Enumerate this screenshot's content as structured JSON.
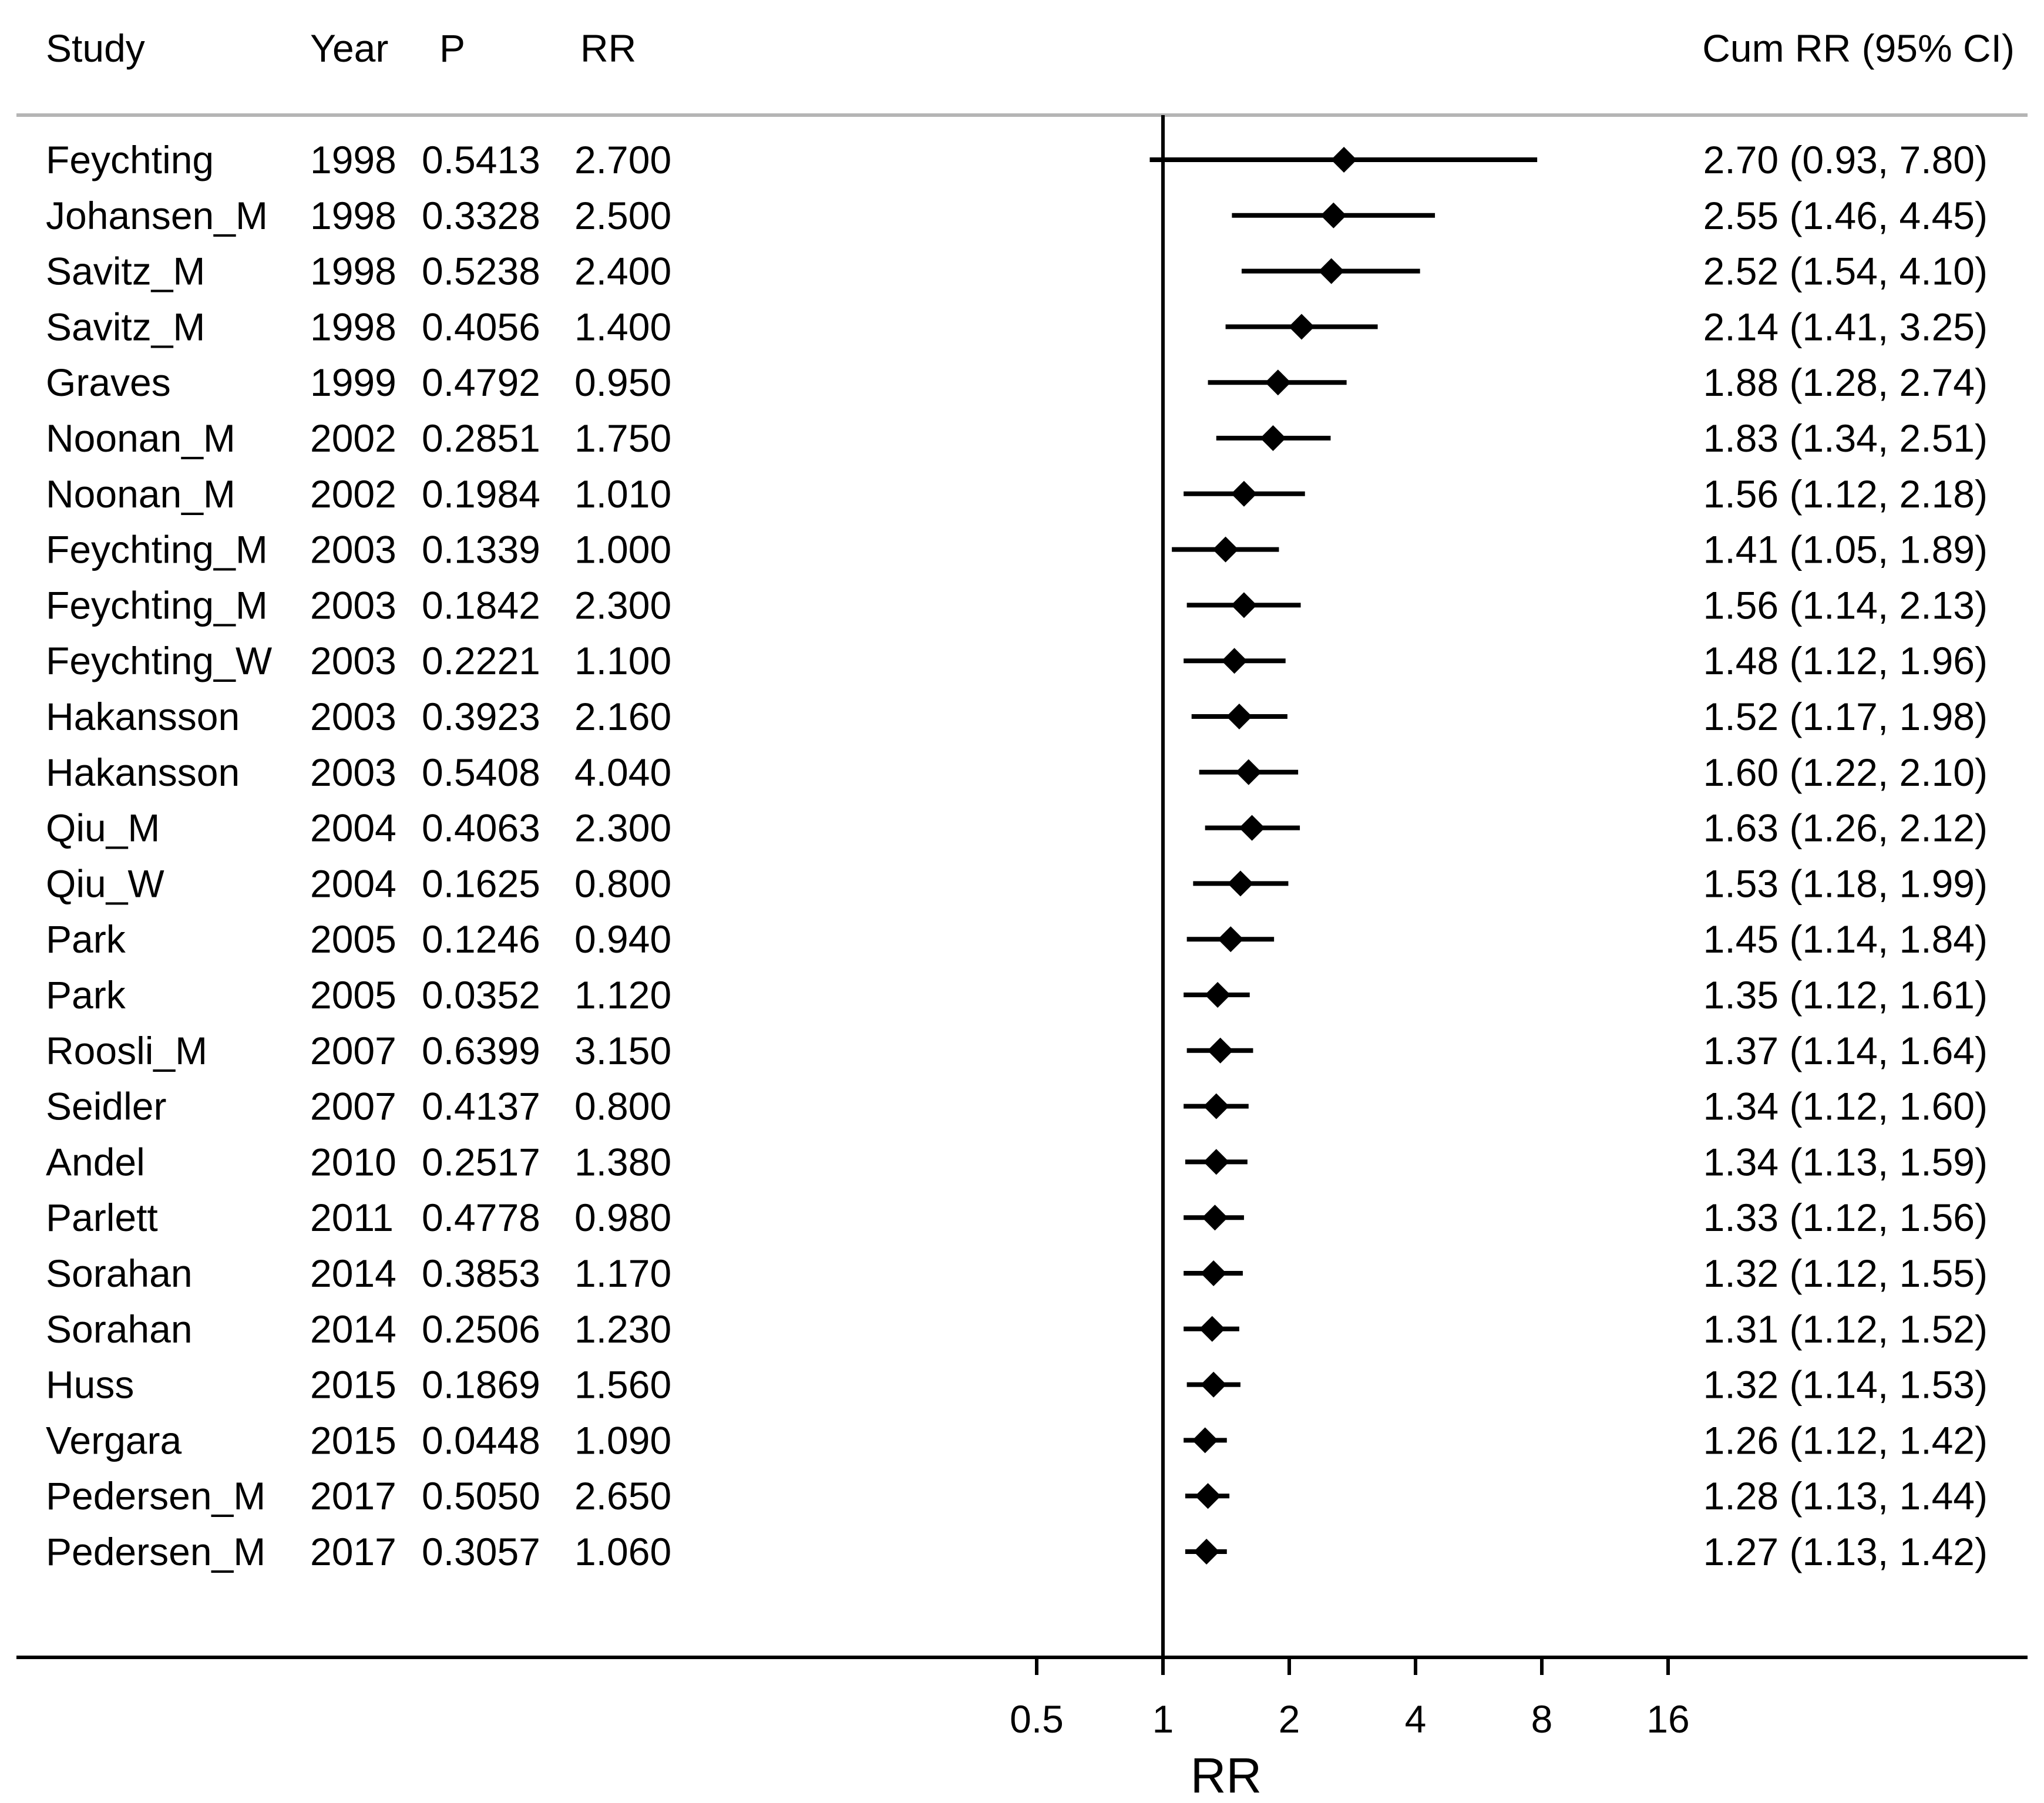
{
  "chart_data": {
    "type": "forest",
    "title": "",
    "xlabel": "RR",
    "xscale": "log2",
    "xlim": [
      0.5,
      16
    ],
    "reference_line": 1,
    "headers": {
      "study": "Study",
      "year": "Year",
      "p": "P",
      "rr": "RR",
      "cum": "Cum RR (95% CI)"
    },
    "ticks": [
      {
        "value": 0.5,
        "label": "0.5"
      },
      {
        "value": 1,
        "label": "1"
      },
      {
        "value": 2,
        "label": "2"
      },
      {
        "value": 4,
        "label": "4"
      },
      {
        "value": 8,
        "label": "8"
      },
      {
        "value": 16,
        "label": "16"
      }
    ],
    "rows": [
      {
        "study": "Feychting",
        "year": "1998",
        "p": "0.5413",
        "rr": "2.700",
        "cum": 2.7,
        "lo": 0.93,
        "hi": 7.8,
        "label": "2.70 (0.93, 7.80)"
      },
      {
        "study": "Johansen_M",
        "year": "1998",
        "p": "0.3328",
        "rr": "2.500",
        "cum": 2.55,
        "lo": 1.46,
        "hi": 4.45,
        "label": "2.55 (1.46, 4.45)"
      },
      {
        "study": "Savitz_M",
        "year": "1998",
        "p": "0.5238",
        "rr": "2.400",
        "cum": 2.52,
        "lo": 1.54,
        "hi": 4.1,
        "label": "2.52 (1.54, 4.10)"
      },
      {
        "study": "Savitz_M",
        "year": "1998",
        "p": "0.4056",
        "rr": "1.400",
        "cum": 2.14,
        "lo": 1.41,
        "hi": 3.25,
        "label": "2.14 (1.41, 3.25)"
      },
      {
        "study": "Graves",
        "year": "1999",
        "p": "0.4792",
        "rr": "0.950",
        "cum": 1.88,
        "lo": 1.28,
        "hi": 2.74,
        "label": "1.88 (1.28, 2.74)"
      },
      {
        "study": "Noonan_M",
        "year": "2002",
        "p": "0.2851",
        "rr": "1.750",
        "cum": 1.83,
        "lo": 1.34,
        "hi": 2.51,
        "label": "1.83 (1.34, 2.51)"
      },
      {
        "study": "Noonan_M",
        "year": "2002",
        "p": "0.1984",
        "rr": "1.010",
        "cum": 1.56,
        "lo": 1.12,
        "hi": 2.18,
        "label": "1.56 (1.12, 2.18)"
      },
      {
        "study": "Feychting_M",
        "year": "2003",
        "p": "0.1339",
        "rr": "1.000",
        "cum": 1.41,
        "lo": 1.05,
        "hi": 1.89,
        "label": "1.41 (1.05, 1.89)"
      },
      {
        "study": "Feychting_M",
        "year": "2003",
        "p": "0.1842",
        "rr": "2.300",
        "cum": 1.56,
        "lo": 1.14,
        "hi": 2.13,
        "label": "1.56 (1.14, 2.13)"
      },
      {
        "study": "Feychting_W",
        "year": "2003",
        "p": "0.2221",
        "rr": "1.100",
        "cum": 1.48,
        "lo": 1.12,
        "hi": 1.96,
        "label": "1.48 (1.12, 1.96)"
      },
      {
        "study": "Hakansson",
        "year": "2003",
        "p": "0.3923",
        "rr": "2.160",
        "cum": 1.52,
        "lo": 1.17,
        "hi": 1.98,
        "label": "1.52 (1.17, 1.98)"
      },
      {
        "study": "Hakansson",
        "year": "2003",
        "p": "0.5408",
        "rr": "4.040",
        "cum": 1.6,
        "lo": 1.22,
        "hi": 2.1,
        "label": "1.60 (1.22, 2.10)"
      },
      {
        "study": "Qiu_M",
        "year": "2004",
        "p": "0.4063",
        "rr": "2.300",
        "cum": 1.63,
        "lo": 1.26,
        "hi": 2.12,
        "label": "1.63 (1.26, 2.12)"
      },
      {
        "study": "Qiu_W",
        "year": "2004",
        "p": "0.1625",
        "rr": "0.800",
        "cum": 1.53,
        "lo": 1.18,
        "hi": 1.99,
        "label": "1.53 (1.18, 1.99)"
      },
      {
        "study": "Park",
        "year": "2005",
        "p": "0.1246",
        "rr": "0.940",
        "cum": 1.45,
        "lo": 1.14,
        "hi": 1.84,
        "label": "1.45 (1.14, 1.84)"
      },
      {
        "study": "Park",
        "year": "2005",
        "p": "0.0352",
        "rr": "1.120",
        "cum": 1.35,
        "lo": 1.12,
        "hi": 1.61,
        "label": "1.35 (1.12, 1.61)"
      },
      {
        "study": "Roosli_M",
        "year": "2007",
        "p": "0.6399",
        "rr": "3.150",
        "cum": 1.37,
        "lo": 1.14,
        "hi": 1.64,
        "label": "1.37 (1.14, 1.64)"
      },
      {
        "study": "Seidler",
        "year": "2007",
        "p": "0.4137",
        "rr": "0.800",
        "cum": 1.34,
        "lo": 1.12,
        "hi": 1.6,
        "label": "1.34 (1.12, 1.60)"
      },
      {
        "study": "Andel",
        "year": "2010",
        "p": "0.2517",
        "rr": "1.380",
        "cum": 1.34,
        "lo": 1.13,
        "hi": 1.59,
        "label": "1.34 (1.13, 1.59)"
      },
      {
        "study": "Parlett",
        "year": "2011",
        "p": "0.4778",
        "rr": "0.980",
        "cum": 1.33,
        "lo": 1.12,
        "hi": 1.56,
        "label": "1.33 (1.12, 1.56)"
      },
      {
        "study": "Sorahan",
        "year": "2014",
        "p": "0.3853",
        "rr": "1.170",
        "cum": 1.32,
        "lo": 1.12,
        "hi": 1.55,
        "label": "1.32 (1.12, 1.55)"
      },
      {
        "study": "Sorahan",
        "year": "2014",
        "p": "0.2506",
        "rr": "1.230",
        "cum": 1.31,
        "lo": 1.12,
        "hi": 1.52,
        "label": "1.31 (1.12, 1.52)"
      },
      {
        "study": "Huss",
        "year": "2015",
        "p": "0.1869",
        "rr": "1.560",
        "cum": 1.32,
        "lo": 1.14,
        "hi": 1.53,
        "label": "1.32 (1.14, 1.53)"
      },
      {
        "study": "Vergara",
        "year": "2015",
        "p": "0.0448",
        "rr": "1.090",
        "cum": 1.26,
        "lo": 1.12,
        "hi": 1.42,
        "label": "1.26 (1.12, 1.42)"
      },
      {
        "study": "Pedersen_M",
        "year": "2017",
        "p": "0.5050",
        "rr": "2.650",
        "cum": 1.28,
        "lo": 1.13,
        "hi": 1.44,
        "label": "1.28 (1.13, 1.44)"
      },
      {
        "study": "Pedersen_M",
        "year": "2017",
        "p": "0.3057",
        "rr": "1.060",
        "cum": 1.27,
        "lo": 1.13,
        "hi": 1.42,
        "label": "1.27 (1.13, 1.42)"
      }
    ]
  }
}
